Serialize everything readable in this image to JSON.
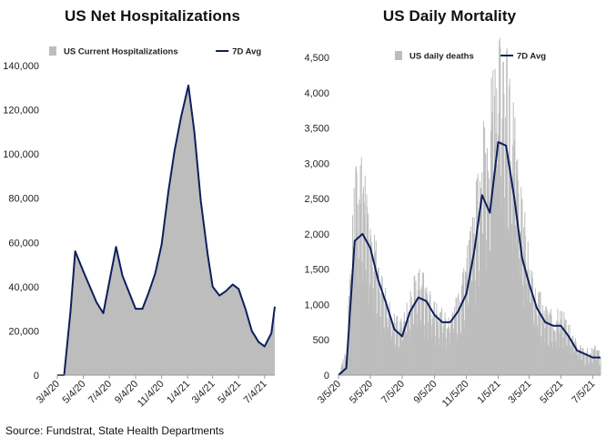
{
  "source": "Source: Fundstrat, State Health Departments",
  "chart_data": [
    {
      "type": "area",
      "title": "US Net Hospitalizations",
      "colors": {
        "area": "#bdbdbd",
        "line": "#0d1f5c"
      },
      "ylim": [
        0,
        140000
      ],
      "yticks": [
        "0",
        "20,000",
        "40,000",
        "60,000",
        "80,000",
        "100,000",
        "120,000",
        "140,000"
      ],
      "xticks": [
        "3/4/20",
        "5/4/20",
        "7/4/20",
        "9/4/20",
        "11/4/20",
        "1/4/21",
        "3/4/21",
        "5/4/21",
        "7/4/21"
      ],
      "legend": [
        {
          "label": "US Current Hospitalizations",
          "kind": "area"
        },
        {
          "label": "7D Avg",
          "kind": "line"
        }
      ],
      "series": [
        {
          "name": "US Current Hospitalizations",
          "x": [
            "3/4/20",
            "3/20/20",
            "4/4/20",
            "4/15/20",
            "5/4/20",
            "6/4/20",
            "6/20/20",
            "7/4/20",
            "7/20/20",
            "8/4/20",
            "9/4/20",
            "9/20/20",
            "10/4/20",
            "10/20/20",
            "11/4/20",
            "11/20/20",
            "12/4/20",
            "12/20/20",
            "1/6/21",
            "1/20/21",
            "2/4/21",
            "2/20/21",
            "3/4/21",
            "3/20/21",
            "4/4/21",
            "4/20/21",
            "5/4/21",
            "5/20/21",
            "6/4/21",
            "6/20/21",
            "7/4/21",
            "7/20/21",
            "7/28/21"
          ],
          "values": [
            0,
            0,
            29000,
            56000,
            47000,
            33000,
            28000,
            42000,
            58000,
            45000,
            30000,
            30000,
            37000,
            46000,
            59000,
            83000,
            101000,
            117000,
            131000,
            110000,
            79000,
            55000,
            40000,
            36000,
            38000,
            41000,
            39000,
            30000,
            20000,
            15000,
            13000,
            19000,
            31000
          ]
        },
        {
          "name": "7D Avg",
          "x": [
            "3/4/20",
            "3/20/20",
            "4/4/20",
            "4/15/20",
            "5/4/20",
            "6/4/20",
            "6/20/20",
            "7/4/20",
            "7/20/20",
            "8/4/20",
            "9/4/20",
            "9/20/20",
            "10/4/20",
            "10/20/20",
            "11/4/20",
            "11/20/20",
            "12/4/20",
            "12/20/20",
            "1/6/21",
            "1/20/21",
            "2/4/21",
            "2/20/21",
            "3/4/21",
            "3/20/21",
            "4/4/21",
            "4/20/21",
            "5/4/21",
            "5/20/21",
            "6/4/21",
            "6/20/21",
            "7/4/21",
            "7/20/21",
            "7/28/21"
          ],
          "values": [
            0,
            0,
            29000,
            56000,
            47000,
            33000,
            28000,
            42000,
            58000,
            45000,
            30000,
            30000,
            37000,
            46000,
            59000,
            83000,
            101000,
            117000,
            131000,
            110000,
            79000,
            55000,
            40000,
            36000,
            38000,
            41000,
            39000,
            30000,
            20000,
            15000,
            13000,
            19000,
            31000
          ]
        }
      ]
    },
    {
      "type": "bar",
      "title": "US Daily Mortality",
      "colors": {
        "bar": "#bdbdbd",
        "line": "#0d1f5c"
      },
      "ylim": [
        0,
        4500
      ],
      "yticks": [
        "0",
        "500",
        "1,000",
        "1,500",
        "2,000",
        "2,500",
        "3,000",
        "3,500",
        "4,000",
        "4,500"
      ],
      "xticks": [
        "3/5/20",
        "5/5/20",
        "7/5/20",
        "9/5/20",
        "11/5/20",
        "1/5/21",
        "3/5/21",
        "5/5/21",
        "7/5/21"
      ],
      "legend": [
        {
          "label": "US daily deaths",
          "kind": "bar"
        },
        {
          "label": "7D Avg",
          "kind": "line"
        }
      ],
      "series": [
        {
          "name": "US daily deaths",
          "x": [
            "3/5/20",
            "3/20/20",
            "4/5/20",
            "4/20/20",
            "5/5/20",
            "5/20/20",
            "6/5/20",
            "6/20/20",
            "7/5/20",
            "7/20/20",
            "8/5/20",
            "8/20/20",
            "9/5/20",
            "9/20/20",
            "10/5/20",
            "10/20/20",
            "11/5/20",
            "11/20/20",
            "12/5/20",
            "12/20/20",
            "1/5/21",
            "1/20/21",
            "2/5/21",
            "2/20/21",
            "3/5/21",
            "3/20/21",
            "4/5/21",
            "4/20/21",
            "5/5/21",
            "5/20/21",
            "6/5/21",
            "6/20/21",
            "7/5/21",
            "7/20/21"
          ],
          "values": [
            0,
            300,
            2500,
            2600,
            2000,
            1400,
            1000,
            700,
            650,
            1000,
            1300,
            1100,
            900,
            800,
            800,
            1000,
            1400,
            2000,
            2900,
            3200,
            4200,
            3900,
            3000,
            2000,
            1600,
            1000,
            900,
            750,
            800,
            600,
            400,
            300,
            350,
            300
          ]
        },
        {
          "name": "7D Avg",
          "x": [
            "3/5/20",
            "3/20/20",
            "4/5/20",
            "4/20/20",
            "5/5/20",
            "5/20/20",
            "6/5/20",
            "6/20/20",
            "7/5/20",
            "7/20/20",
            "8/5/20",
            "8/20/20",
            "9/5/20",
            "9/20/20",
            "10/5/20",
            "10/20/20",
            "11/5/20",
            "11/20/20",
            "12/5/20",
            "12/20/20",
            "1/5/21",
            "1/20/21",
            "2/5/21",
            "2/20/21",
            "3/5/21",
            "3/20/21",
            "4/5/21",
            "4/20/21",
            "5/5/21",
            "5/20/21",
            "6/5/21",
            "6/20/21",
            "7/5/21",
            "7/20/21"
          ],
          "values": [
            0,
            100,
            1900,
            2000,
            1800,
            1350,
            1000,
            650,
            550,
            900,
            1100,
            1050,
            850,
            750,
            750,
            900,
            1150,
            1750,
            2550,
            2300,
            3300,
            3250,
            2500,
            1650,
            1300,
            950,
            750,
            700,
            700,
            550,
            350,
            300,
            250,
            250
          ]
        }
      ]
    }
  ]
}
